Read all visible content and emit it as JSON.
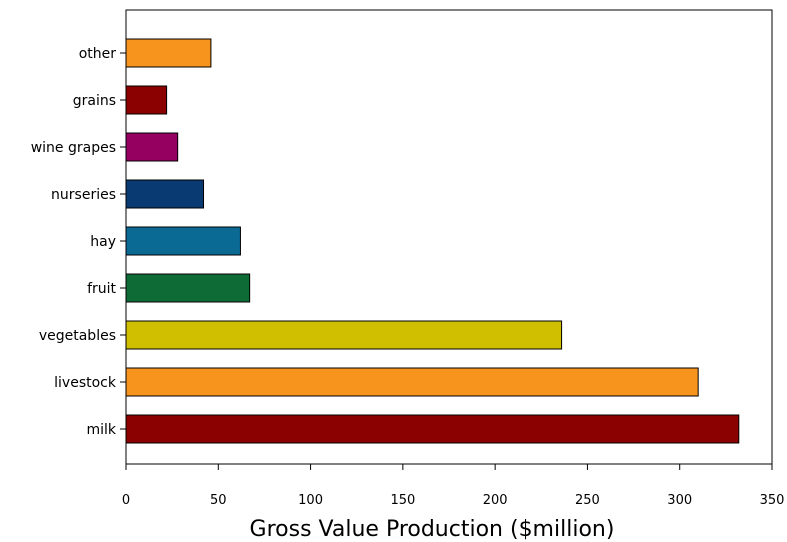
{
  "chart_data": {
    "type": "bar",
    "orientation": "horizontal",
    "title": "",
    "xlabel": "Gross Value Production ($million)",
    "ylabel": "",
    "xlim": [
      0,
      350
    ],
    "xticks": [
      0,
      50,
      100,
      150,
      200,
      250,
      300,
      350
    ],
    "grid": false,
    "categories": [
      "other",
      "grains",
      "wine grapes",
      "nurseries",
      "hay",
      "fruit",
      "vegetables",
      "livestock",
      "milk"
    ],
    "values": [
      46,
      22,
      28,
      42,
      62,
      67,
      236,
      310,
      332
    ],
    "colors": [
      "#f7941d",
      "#8b0000",
      "#950060",
      "#0a3a72",
      "#0a6a93",
      "#0f6b35",
      "#d0be00",
      "#f7941d",
      "#8b0000"
    ]
  }
}
